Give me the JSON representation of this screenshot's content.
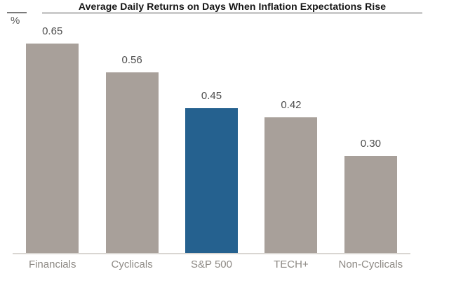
{
  "chart": {
    "title": "Average Daily Returns on Days When Inflation Expectations Rise",
    "unit": "%"
  },
  "chart_data": {
    "type": "bar",
    "title": "Average Daily Returns on Days When Inflation Expectations Rise",
    "categories": [
      "Financials",
      "Cyclicals",
      "S&P 500",
      "TECH+",
      "Non-Cyclicals"
    ],
    "values": [
      0.65,
      0.56,
      0.45,
      0.42,
      0.3
    ],
    "value_labels": [
      "0.65",
      "0.56",
      "0.45",
      "0.42",
      "0.30"
    ],
    "xlabel": "",
    "ylabel": "%",
    "ylim": [
      0,
      0.7
    ],
    "grid": false,
    "legend": false,
    "highlight_index": 2,
    "bar_colors": [
      "#a8a09a",
      "#a8a09a",
      "#25618f",
      "#a8a09a",
      "#a8a09a"
    ],
    "colors": {
      "default_bar": "#a8a09a",
      "highlight_bar": "#25618f",
      "value_label": "#4d4d4d",
      "category_label": "#8e8a85",
      "baseline": "#d9d6d2",
      "title_underline": "#4d4d4d"
    }
  }
}
